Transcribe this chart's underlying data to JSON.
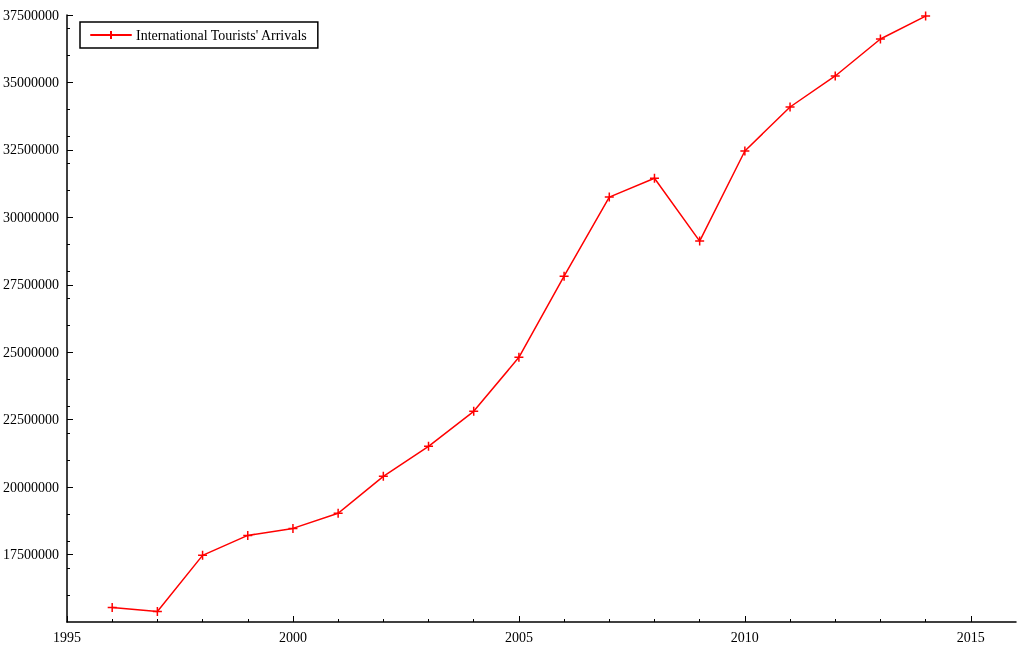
{
  "chart_data": {
    "type": "line",
    "x": [
      1996,
      1997,
      1998,
      1999,
      2000,
      2001,
      2002,
      2003,
      2004,
      2005,
      2006,
      2007,
      2008,
      2009,
      2010,
      2011,
      2012,
      2013,
      2014
    ],
    "series": [
      {
        "name": "International Tourists' Arrivals",
        "color": "#ff0000",
        "values": [
          15540000,
          15390000,
          17470000,
          18210000,
          18470000,
          19030000,
          20400000,
          21510000,
          22810000,
          24810000,
          27820000,
          30750000,
          31450000,
          29120000,
          32460000,
          34090000,
          35240000,
          36610000,
          37460000
        ]
      }
    ],
    "xlim": [
      1995,
      2016
    ],
    "xticks": [
      1995,
      2000,
      2005,
      2010,
      2015
    ],
    "ylim": [
      15000000,
      37500000
    ],
    "yticks": [
      17500000,
      20000000,
      22500000,
      25000000,
      27500000,
      30000000,
      32500000,
      35000000,
      37500000
    ],
    "grid": false,
    "legend": "top left",
    "marker": "cross",
    "line_style": "solid"
  }
}
